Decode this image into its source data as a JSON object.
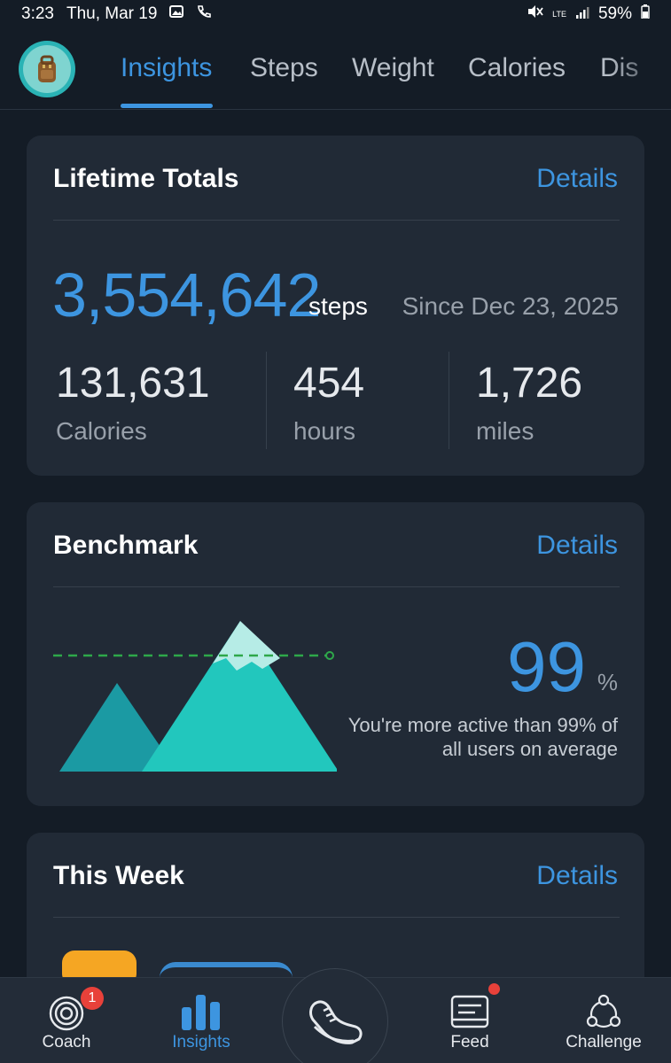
{
  "status": {
    "time": "3:23",
    "date": "Thu, Mar 19",
    "network": "LTE",
    "battery": "59%"
  },
  "tabs": [
    {
      "label": "Insights",
      "active": true
    },
    {
      "label": "Steps"
    },
    {
      "label": "Weight"
    },
    {
      "label": "Calories"
    },
    {
      "label": "Dis"
    }
  ],
  "lifetime": {
    "title": "Lifetime Totals",
    "details": "Details",
    "steps": "3,554,642",
    "steps_unit": "steps",
    "since": "Since Dec 23, 2025",
    "stats": [
      {
        "value": "131,631",
        "label": "Calories"
      },
      {
        "value": "454",
        "label": "hours"
      },
      {
        "value": "1,726",
        "label": "miles"
      }
    ]
  },
  "benchmark": {
    "title": "Benchmark",
    "details": "Details",
    "value": "99",
    "unit": "%",
    "description": "You're more active than 99% of all users on average"
  },
  "this_week": {
    "title": "This Week",
    "details": "Details"
  },
  "bottom_nav": [
    {
      "label": "Coach",
      "icon": "coach-icon",
      "badge": "1"
    },
    {
      "label": "Insights",
      "icon": "bar-chart-icon",
      "active": true
    },
    {
      "label": "",
      "icon": "shoe-icon"
    },
    {
      "label": "Feed",
      "icon": "feed-icon"
    },
    {
      "label": "Challenge",
      "icon": "challenge-icon"
    }
  ],
  "colors": {
    "accent": "#3d95e0",
    "background": "#141c26",
    "card": "#212a36",
    "mountain": "#22c7bd",
    "benchmark_line": "#2ea84a",
    "badge": "#e8413a"
  }
}
